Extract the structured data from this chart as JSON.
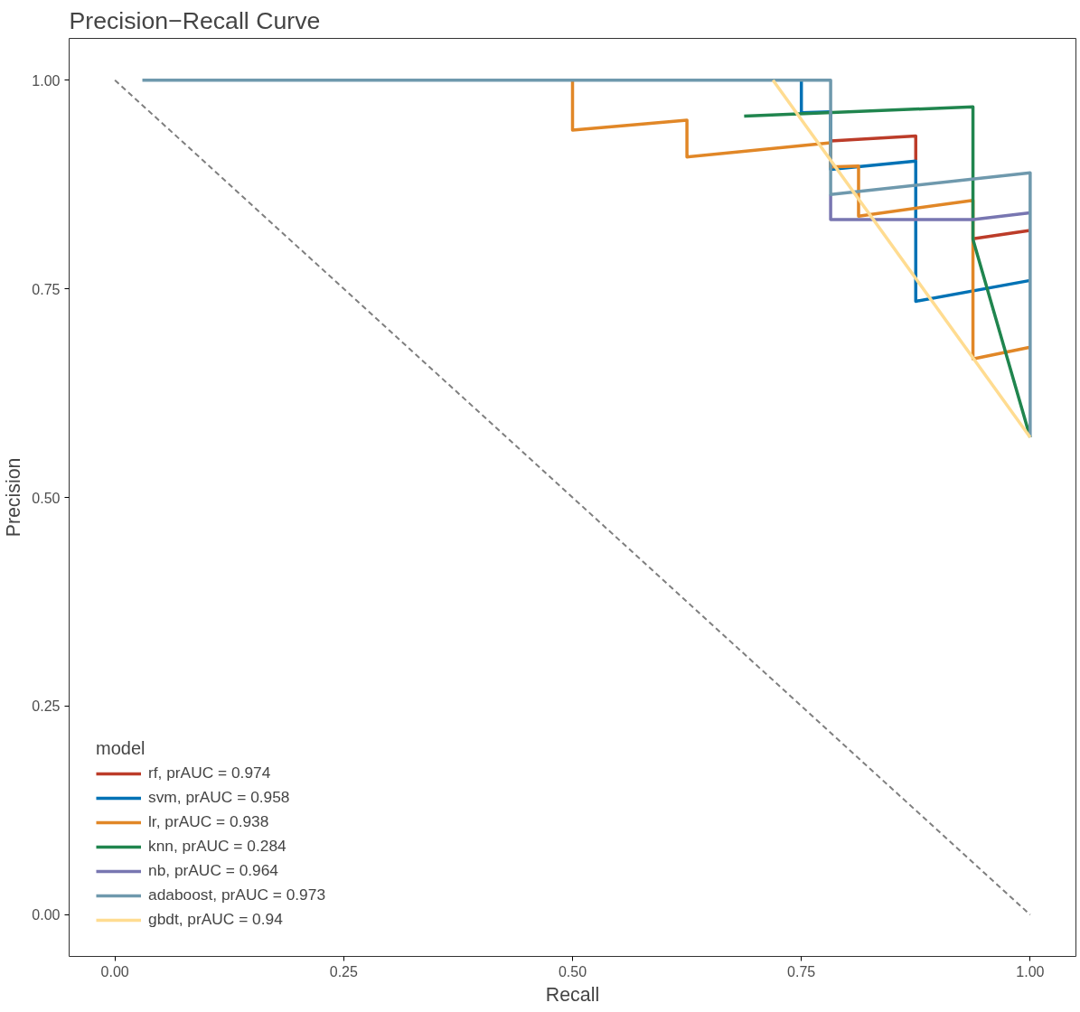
{
  "chart_data": {
    "type": "line",
    "title": "Precision−Recall Curve",
    "xlabel": "Recall",
    "ylabel": "Precision",
    "legend_title": "model",
    "legend": "bottom left",
    "grid": false,
    "line_style": "solid",
    "xlim": [
      -0.05,
      1.05
    ],
    "ylim": [
      -0.05,
      1.05
    ],
    "xticks": [
      {
        "value": 0,
        "label": "0.00"
      },
      {
        "value": 0.25,
        "label": "0.25"
      },
      {
        "value": 0.5,
        "label": "0.50"
      },
      {
        "value": 0.75,
        "label": "0.75"
      },
      {
        "value": 1,
        "label": "1.00"
      }
    ],
    "yticks": [
      {
        "value": 0,
        "label": "0.00"
      },
      {
        "value": 0.25,
        "label": "0.25"
      },
      {
        "value": 0.5,
        "label": "0.50"
      },
      {
        "value": 0.75,
        "label": "0.75"
      },
      {
        "value": 1,
        "label": "1.00"
      }
    ],
    "series": [
      {
        "name": "rf, prAUC = 0.974",
        "color": "#bc3c29",
        "x": [
          0.782,
          0.875,
          0.875,
          null,
          0.9375,
          1.0
        ],
        "values": [
          0.927,
          0.933,
          0.904,
          null,
          0.81,
          0.82
        ]
      },
      {
        "name": "svm, prAUC = 0.958",
        "color": "#0072b5",
        "x": [
          0.75,
          0.75,
          0.782,
          0.782,
          0.875,
          0.875,
          1.0
        ],
        "values": [
          1.0,
          0.961,
          0.962,
          0.893,
          0.903,
          0.735,
          0.76
        ]
      },
      {
        "name": "lr, prAUC = 0.938",
        "color": "#e18727",
        "x": [
          0.5,
          0.5,
          0.625,
          0.625,
          0.782,
          0.782,
          0.8125,
          0.8125,
          0.9375,
          0.9375,
          1.0
        ],
        "values": [
          1.0,
          0.94,
          0.952,
          0.908,
          0.925,
          0.896,
          0.897,
          0.837,
          0.856,
          0.666,
          0.68
        ]
      },
      {
        "name": "knn, prAUC = 0.284",
        "color": "#20854e",
        "x": [
          0.6875,
          0.9375,
          0.9375,
          1.0
        ],
        "values": [
          0.957,
          0.968,
          0.809,
          0.572
        ]
      },
      {
        "name": "nb, prAUC = 0.964",
        "color": "#7876b1",
        "x": [
          0.782,
          0.782,
          0.9375,
          1.0
        ],
        "values": [
          0.863,
          0.833,
          0.833,
          0.841
        ]
      },
      {
        "name": "adaboost, prAUC = 0.973",
        "color": "#6f99ad",
        "x": [
          0.03,
          0.782,
          0.782,
          1.0,
          1.0
        ],
        "values": [
          1.0,
          1.0,
          0.863,
          0.889,
          0.572
        ]
      },
      {
        "name": "gbdt, prAUC = 0.94",
        "color": "#ffdc91",
        "x": [
          0.719,
          1.0
        ],
        "values": [
          1.0,
          0.572
        ]
      },
      {
        "color": "#7f7f7f",
        "line_style": "dashed",
        "x": [
          0,
          1
        ],
        "values": [
          1,
          0
        ]
      }
    ]
  }
}
